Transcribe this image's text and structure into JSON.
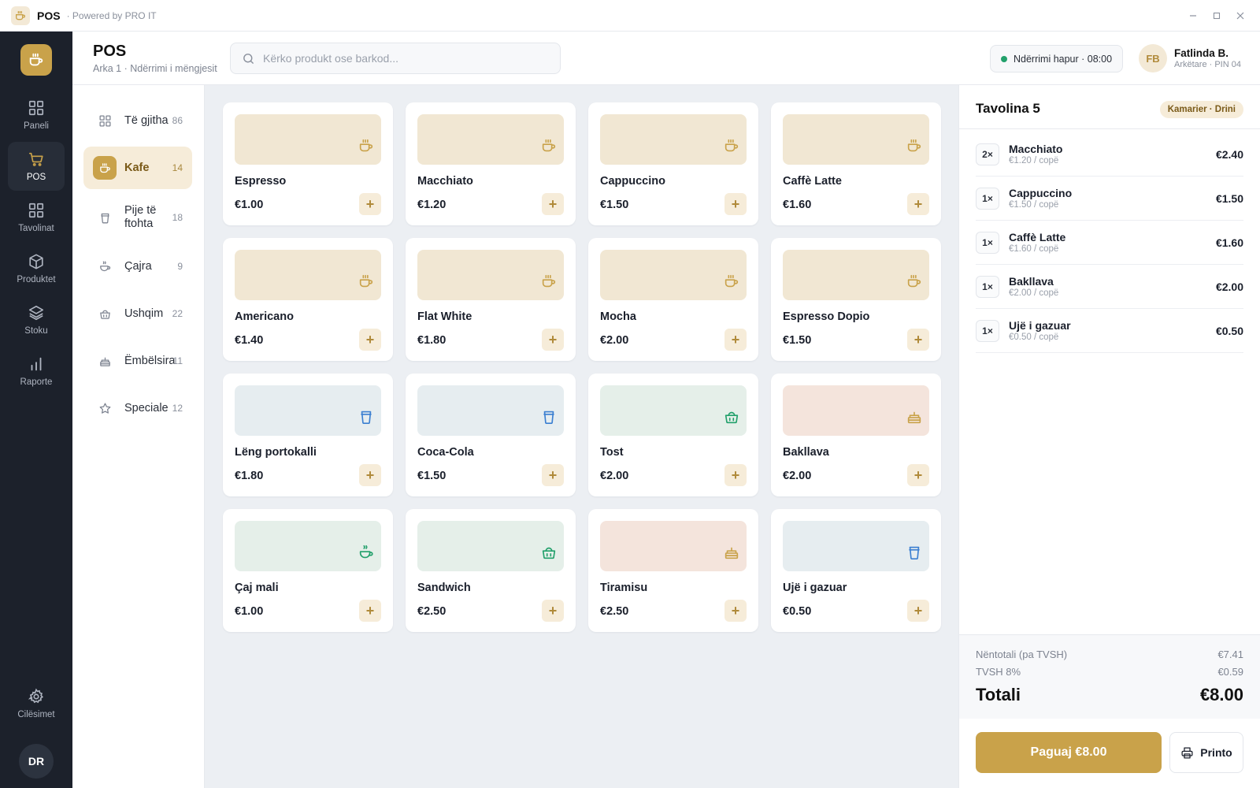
{
  "titlebar": {
    "app_name": "POS",
    "powered_by": "· Powered by PRO IT",
    "logo_icon": "coffee-cup-icon"
  },
  "nav": {
    "items": [
      {
        "label": "Paneli",
        "icon": "grid-icon"
      },
      {
        "label": "POS",
        "icon": "cart-icon",
        "active": true
      },
      {
        "label": "Tavolinat",
        "icon": "tables-grid-icon"
      },
      {
        "label": "Produktet",
        "icon": "box-icon"
      },
      {
        "label": "Stoku",
        "icon": "layers-icon"
      },
      {
        "label": "Raporte",
        "icon": "bar-chart-icon"
      }
    ],
    "settings_label": "Cilësimet",
    "avatar_initials": "DR"
  },
  "header": {
    "title": "POS",
    "subtitle": "Arka 1 · Ndërrimi i mëngjesit",
    "search_placeholder": "Kërko produkt ose barkod...",
    "shift_status": "Ndërrimi hapur · 08:00",
    "user": {
      "initials": "FB",
      "name": "Fatlinda B.",
      "role": "Arkëtare · PIN 04"
    }
  },
  "categories": [
    {
      "label": "Të gjitha",
      "count": "86",
      "icon": "grid-icon"
    },
    {
      "label": "Kafe",
      "count": "14",
      "icon": "coffee-cup-icon",
      "active": true
    },
    {
      "label": "Pije të ftohta",
      "count": "18",
      "icon": "cup-icon"
    },
    {
      "label": "Çajra",
      "count": "9",
      "icon": "tea-icon"
    },
    {
      "label": "Ushqim",
      "count": "22",
      "icon": "food-bag-icon"
    },
    {
      "label": "Ëmbëlsira",
      "count": "11",
      "icon": "cake-icon"
    },
    {
      "label": "Speciale",
      "count": "12",
      "icon": "star-icon"
    }
  ],
  "products": [
    {
      "name": "Espresso",
      "price": "€1.00",
      "kind": "coffee"
    },
    {
      "name": "Macchiato",
      "price": "€1.20",
      "kind": "coffee"
    },
    {
      "name": "Cappuccino",
      "price": "€1.50",
      "kind": "coffee"
    },
    {
      "name": "Caffè Latte",
      "price": "€1.60",
      "kind": "coffee"
    },
    {
      "name": "Americano",
      "price": "€1.40",
      "kind": "coffee"
    },
    {
      "name": "Flat White",
      "price": "€1.80",
      "kind": "coffee"
    },
    {
      "name": "Mocha",
      "price": "€2.00",
      "kind": "coffee"
    },
    {
      "name": "Espresso Dopio",
      "price": "€1.50",
      "kind": "coffee"
    },
    {
      "name": "Lëng portokalli",
      "price": "€1.80",
      "kind": "cold"
    },
    {
      "name": "Coca-Cola",
      "price": "€1.50",
      "kind": "cold"
    },
    {
      "name": "Tost",
      "price": "€2.00",
      "kind": "food"
    },
    {
      "name": "Bakllava",
      "price": "€2.00",
      "kind": "dessert"
    },
    {
      "name": "Çaj mali",
      "price": "€1.00",
      "kind": "tea"
    },
    {
      "name": "Sandwich",
      "price": "€2.50",
      "kind": "food"
    },
    {
      "name": "Tiramisu",
      "price": "€2.50",
      "kind": "dessert"
    },
    {
      "name": "Ujë i gazuar",
      "price": "€0.50",
      "kind": "cold"
    }
  ],
  "product_add_label": "+",
  "kind_styles": {
    "coffee": {
      "bg": "#f1e7d3",
      "color": "#c9a24a",
      "icon": "coffee-cup-icon"
    },
    "cold": {
      "bg": "#e6edf0",
      "color": "#3b7fd1",
      "icon": "cup-icon"
    },
    "food": {
      "bg": "#e5efe9",
      "color": "#22a06b",
      "icon": "food-bag-icon"
    },
    "tea": {
      "bg": "#e5efe9",
      "color": "#22a06b",
      "icon": "tea-icon"
    },
    "dessert": {
      "bg": "#f4e4dc",
      "color": "#c9a24a",
      "icon": "cake-icon"
    }
  },
  "order": {
    "table": "Tavolina 5",
    "waiter": "Kamarier · Drini",
    "lines": [
      {
        "qty": "2×",
        "name": "Macchiato",
        "unit": "€1.20 / copë",
        "total": "€2.40"
      },
      {
        "qty": "1×",
        "name": "Cappuccino",
        "unit": "€1.50 / copë",
        "total": "€1.50"
      },
      {
        "qty": "1×",
        "name": "Caffè Latte",
        "unit": "€1.60 / copë",
        "total": "€1.60"
      },
      {
        "qty": "1×",
        "name": "Bakllava",
        "unit": "€2.00 / copë",
        "total": "€2.00"
      },
      {
        "qty": "1×",
        "name": "Ujë i gazuar",
        "unit": "€0.50 / copë",
        "total": "€0.50"
      }
    ],
    "subtotal_label": "Nëntotali (pa TVSH)",
    "subtotal": "€7.41",
    "vat_label": "TVSH 8%",
    "vat": "€0.59",
    "total_label": "Totali",
    "total": "€8.00",
    "pay_label": "Paguaj €8.00",
    "print_label": "Printo"
  },
  "colors": {
    "accent": "#c9a24a",
    "rail": "#1c212b",
    "success": "#22a06b"
  }
}
